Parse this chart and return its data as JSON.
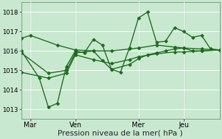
{
  "bg_color": "#c8e8d0",
  "grid_color": "#ffffff",
  "line_color": "#1a6b1a",
  "marker": "D",
  "marker_size": 2.5,
  "linewidth": 1.0,
  "xlabel": "Pression niveau de la mer( hPa )",
  "xlabel_fontsize": 8,
  "ytick_fontsize": 6.5,
  "xtick_fontsize": 7,
  "ylim": [
    1012.5,
    1018.5
  ],
  "xlim": [
    0,
    22
  ],
  "yticks": [
    1013,
    1014,
    1015,
    1016,
    1017,
    1018
  ],
  "xtick_positions": [
    1,
    6,
    13,
    18
  ],
  "xtick_labels": [
    "Mar",
    "Ven",
    "Mer",
    "Jeu"
  ],
  "vline_positions": [
    1,
    6,
    13,
    18
  ],
  "series": [
    [
      0,
      1016.65,
      1,
      1016.8,
      4,
      1016.3,
      6,
      1016.05,
      8,
      1016.0,
      10,
      1016.0,
      12,
      1016.1,
      13,
      1016.15,
      15,
      1016.3,
      17,
      1016.2,
      18,
      1016.15,
      20,
      1016.1,
      22,
      1016.05
    ],
    [
      0,
      1016.0,
      2,
      1014.6,
      3,
      1013.1,
      4,
      1013.3,
      5,
      1015.2,
      6,
      1016.0,
      7,
      1015.9,
      8,
      1016.6,
      9,
      1016.3,
      10,
      1015.05,
      11,
      1014.9,
      12,
      1016.15,
      13,
      1017.7,
      14,
      1018.0,
      15,
      1016.45,
      16,
      1016.5,
      17,
      1017.2,
      18,
      1017.0,
      19,
      1016.7,
      20,
      1016.8,
      21,
      1016.1,
      22,
      1016.05
    ],
    [
      0,
      1015.9,
      3,
      1014.85,
      5,
      1015.0,
      6,
      1015.9,
      7,
      1015.95,
      8,
      1016.0,
      9,
      1015.5,
      10,
      1015.05,
      12,
      1015.3,
      13,
      1015.6,
      14,
      1015.8,
      15,
      1015.9,
      16,
      1016.0,
      17,
      1016.1,
      18,
      1016.15,
      19,
      1016.0,
      20,
      1016.0,
      22,
      1016.05
    ],
    [
      0,
      1014.9,
      3,
      1014.6,
      5,
      1014.85,
      6,
      1015.8,
      8,
      1015.55,
      10,
      1015.35,
      12,
      1015.55,
      13,
      1015.7,
      15,
      1015.85,
      17,
      1015.95,
      18,
      1015.95,
      20,
      1016.0,
      22,
      1016.05
    ]
  ]
}
